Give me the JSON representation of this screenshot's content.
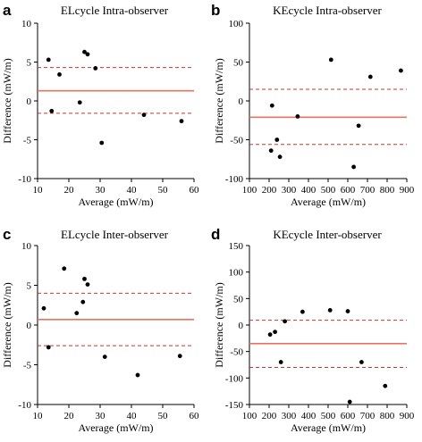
{
  "colors": {
    "mean": "#e8735f",
    "limits": "#c0392b",
    "points": "#000000"
  },
  "chart_data": [
    {
      "type": "scatter",
      "panel": "a",
      "title": "ELcycle Intra-observer",
      "xlabel": "Average (mW/m)",
      "ylabel": "Difference (mW/m)",
      "xlim": [
        10,
        60
      ],
      "ylim": [
        -10,
        10
      ],
      "xticks": [
        10,
        20,
        30,
        40,
        50,
        60
      ],
      "yticks": [
        -10,
        -5,
        0,
        5,
        10
      ],
      "mean": 1.3,
      "lower_limit": -1.6,
      "upper_limit": 4.3,
      "points": [
        {
          "x": 13.5,
          "y": 5.3
        },
        {
          "x": 14.5,
          "y": -1.3
        },
        {
          "x": 17,
          "y": 3.4
        },
        {
          "x": 23.5,
          "y": -0.2
        },
        {
          "x": 25,
          "y": 6.3
        },
        {
          "x": 26,
          "y": 6.0
        },
        {
          "x": 28.5,
          "y": 4.2
        },
        {
          "x": 30.5,
          "y": -5.4
        },
        {
          "x": 44,
          "y": -1.8
        },
        {
          "x": 56,
          "y": -2.6
        }
      ]
    },
    {
      "type": "scatter",
      "panel": "b",
      "title": "KEcycle Intra-observer",
      "xlabel": "Average (mW/m)",
      "ylabel": "Difference (mW/m)",
      "xlim": [
        100,
        900
      ],
      "ylim": [
        -100,
        100
      ],
      "xticks": [
        100,
        200,
        300,
        400,
        500,
        600,
        700,
        800,
        900
      ],
      "yticks": [
        -100,
        -50,
        0,
        50,
        100
      ],
      "mean": -21,
      "lower_limit": -56,
      "upper_limit": 15,
      "points": [
        {
          "x": 210,
          "y": -64
        },
        {
          "x": 215,
          "y": -6
        },
        {
          "x": 240,
          "y": -50
        },
        {
          "x": 255,
          "y": -72
        },
        {
          "x": 345,
          "y": -20
        },
        {
          "x": 515,
          "y": 53
        },
        {
          "x": 630,
          "y": -85
        },
        {
          "x": 655,
          "y": -32
        },
        {
          "x": 715,
          "y": 31
        },
        {
          "x": 870,
          "y": 39
        }
      ]
    },
    {
      "type": "scatter",
      "panel": "c",
      "title": "ELcycle Inter-observer",
      "xlabel": "Average (mW/m)",
      "ylabel": "Difference (mW/m)",
      "xlim": [
        10,
        60
      ],
      "ylim": [
        -10,
        10
      ],
      "xticks": [
        10,
        20,
        30,
        40,
        50,
        60
      ],
      "yticks": [
        -10,
        -5,
        0,
        5,
        10
      ],
      "mean": 0.7,
      "lower_limit": -2.6,
      "upper_limit": 4.0,
      "points": [
        {
          "x": 12,
          "y": 2.1
        },
        {
          "x": 13.5,
          "y": -2.8
        },
        {
          "x": 18.5,
          "y": 7.1
        },
        {
          "x": 22.5,
          "y": 1.5
        },
        {
          "x": 24.5,
          "y": 2.9
        },
        {
          "x": 25,
          "y": 5.8
        },
        {
          "x": 26,
          "y": 5.1
        },
        {
          "x": 31.5,
          "y": -4.0
        },
        {
          "x": 42,
          "y": -6.3
        },
        {
          "x": 55.5,
          "y": -3.9
        }
      ]
    },
    {
      "type": "scatter",
      "panel": "d",
      "title": "KEcycle Inter-observer",
      "xlabel": "Average (mW/m)",
      "ylabel": "Difference (mW/m)",
      "xlim": [
        100,
        900
      ],
      "ylim": [
        -150,
        150
      ],
      "xticks": [
        100,
        200,
        300,
        400,
        500,
        600,
        700,
        800,
        900
      ],
      "yticks": [
        -150,
        -100,
        -50,
        0,
        50,
        100,
        150
      ],
      "mean": -35,
      "lower_limit": -80,
      "upper_limit": 9,
      "points": [
        {
          "x": 205,
          "y": -18
        },
        {
          "x": 230,
          "y": -13
        },
        {
          "x": 260,
          "y": -70
        },
        {
          "x": 280,
          "y": 7
        },
        {
          "x": 370,
          "y": 25
        },
        {
          "x": 510,
          "y": 28
        },
        {
          "x": 600,
          "y": 26
        },
        {
          "x": 610,
          "y": -145
        },
        {
          "x": 670,
          "y": -70
        },
        {
          "x": 790,
          "y": -115
        }
      ]
    }
  ]
}
